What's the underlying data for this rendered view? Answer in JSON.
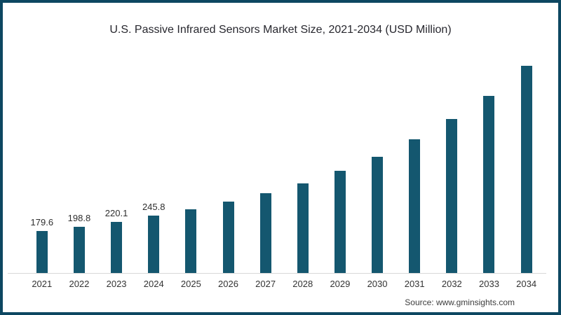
{
  "chart_data": {
    "type": "bar",
    "title": "U.S. Passive Infrared Sensors Market Size, 2021-2034 (USD Million)",
    "categories": [
      "2021",
      "2022",
      "2023",
      "2024",
      "2025",
      "2026",
      "2027",
      "2028",
      "2029",
      "2030",
      "2031",
      "2032",
      "2033",
      "2034"
    ],
    "values": [
      179.6,
      198.8,
      220.1,
      245.8,
      273,
      306,
      342,
      384,
      438,
      498,
      573,
      660,
      760,
      888
    ],
    "data_labels": [
      "179.6",
      "198.8",
      "220.1",
      "245.8",
      null,
      null,
      null,
      null,
      null,
      null,
      null,
      null,
      null,
      null
    ],
    "xlabel": "",
    "ylabel": "",
    "ylim": [
      0,
      978
    ],
    "grid": false,
    "legend": false,
    "bar_color": "#14576f",
    "axis_line_color": "#d8d8d8"
  },
  "source": {
    "text": "Source: www.gminsights.com"
  },
  "colors": {
    "frame_border": "#0d4761",
    "background": "#ffffff",
    "title_text": "#27272e",
    "label_text": "#2e2e2e"
  }
}
